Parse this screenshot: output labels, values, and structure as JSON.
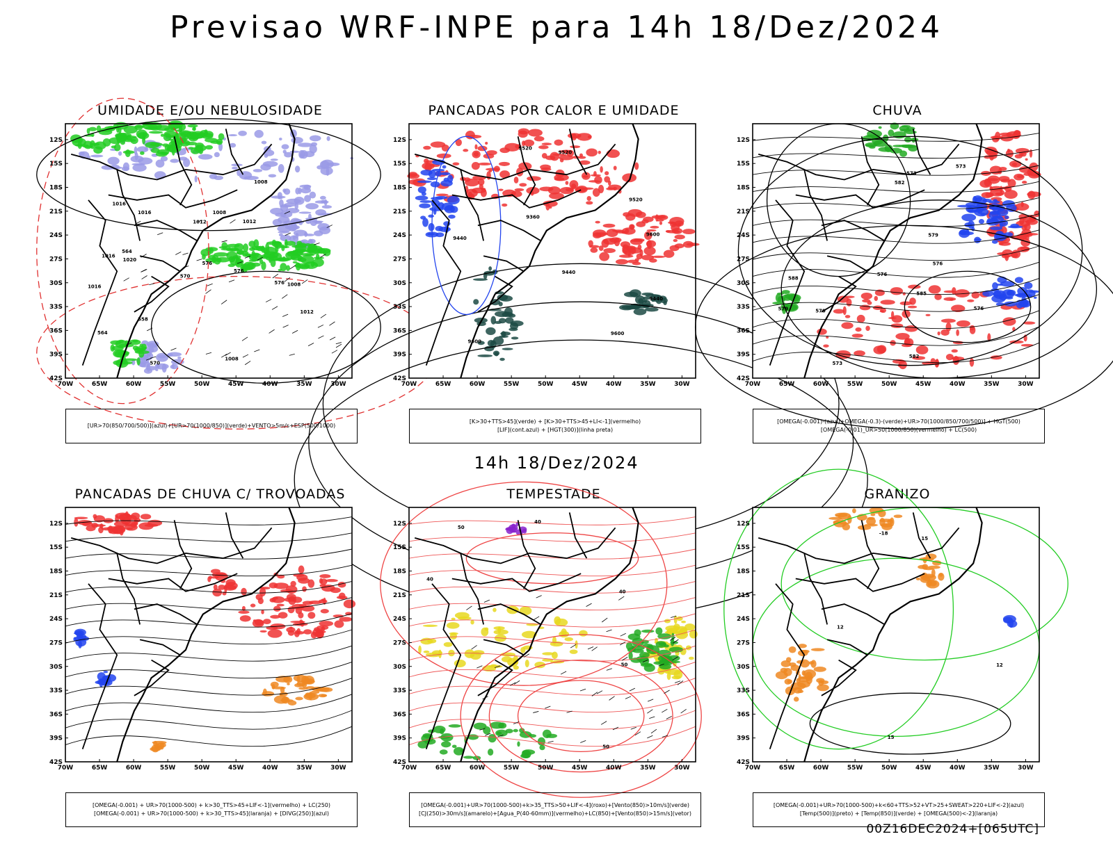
{
  "header": {
    "title": "Previsao WRF-INPE  para 14h 18/Dez/2024",
    "subtitle": "14h 18/Dez/2024",
    "run_stamp": "00Z16DEC2024+[065UTC]"
  },
  "chart_data": [
    {
      "type": "heatmap",
      "title": "UMIDADE E/OU NEBULOSIDADE",
      "legend_lines": [
        "[UR>70(850/700/500)](azul)+[UR>70(1000/850)](verde)+VENTO>5m/s+ESP(500/1000)"
      ],
      "colors": [
        "#9a9ae6",
        "#22cc22",
        "#e03030",
        "#000000"
      ],
      "contour_labels": [
        "1012",
        "1008",
        "1016",
        "1012",
        "1016",
        "1008",
        "1012",
        "1016",
        "1020",
        "1016",
        "1008",
        "1008",
        "576",
        "570",
        "564",
        "558",
        "576",
        "564",
        "576",
        "570"
      ],
      "x_ticks": [
        "70W",
        "65W",
        "60W",
        "55W",
        "50W",
        "45W",
        "40W",
        "35W",
        "30W"
      ],
      "y_ticks": [
        "12S",
        "15S",
        "18S",
        "21S",
        "24S",
        "27S",
        "30S",
        "33S",
        "36S",
        "39S",
        "42S"
      ],
      "xlim": [
        -70,
        -28
      ],
      "ylim": [
        -42,
        -10
      ]
    },
    {
      "type": "heatmap",
      "title": "PANCADAS POR CALOR E UMIDADE",
      "legend_lines": [
        "[K>30+TTS>45](verde) + [K>30+TTS>45+LI<-1](vermelho)",
        "[LIF](cont.azul) + [HGT(300)](linha preta)"
      ],
      "colors": [
        "#ee3333",
        "#1c4a44",
        "#2244ee",
        "#000000"
      ],
      "contour_labels": [
        "9600",
        "9520",
        "9440",
        "9600",
        "9520",
        "9520",
        "9440",
        "9440",
        "9360",
        "9600"
      ],
      "x_ticks": [
        "70W",
        "65W",
        "60W",
        "55W",
        "50W",
        "45W",
        "40W",
        "35W",
        "30W"
      ],
      "y_ticks": [
        "12S",
        "15S",
        "18S",
        "21S",
        "24S",
        "27S",
        "30S",
        "33S",
        "36S",
        "39S",
        "42S"
      ],
      "xlim": [
        -70,
        -28
      ],
      "ylim": [
        -42,
        -10
      ]
    },
    {
      "type": "heatmap",
      "title": "CHUVA",
      "legend_lines": [
        "[OMEGA(-0.001)-(azul)+OMEGA(-0.3)-(verde)+UR>70(1000/850/700/500)] + HGT(500)",
        "[OMEGA(-0.01)_UR>50(1000/850)(vermelho) + LC(500)"
      ],
      "colors": [
        "#ee3333",
        "#22aa22",
        "#2244ee",
        "#000000"
      ],
      "contour_labels": [
        "588",
        "585",
        "582",
        "579",
        "576",
        "573",
        "579",
        "576",
        "573",
        "573",
        "576",
        "582",
        "570"
      ],
      "x_ticks": [
        "70W",
        "65W",
        "60W",
        "55W",
        "50W",
        "45W",
        "40W",
        "35W",
        "30W"
      ],
      "y_ticks": [
        "12S",
        "15S",
        "18S",
        "21S",
        "24S",
        "27S",
        "30S",
        "33S",
        "36S",
        "39S",
        "42S"
      ],
      "xlim": [
        -70,
        -28
      ],
      "ylim": [
        -42,
        -10
      ]
    },
    {
      "type": "heatmap",
      "title": "PANCADAS DE CHUVA C/ TROVOADAS",
      "legend_lines": [
        "[OMEGA(-0.001) + UR>70(1000-500) + k>30_TTS>45+LIF<-1](vermelho) + LC(250)",
        "[OMEGA(-0.001) + UR>70(1000-500) + k>30_TTS>45](laranja) + [DIVG(250)](azul)"
      ],
      "colors": [
        "#ee3333",
        "#ee8822",
        "#2244ee",
        "#000000"
      ],
      "contour_labels": [],
      "x_ticks": [
        "70W",
        "65W",
        "60W",
        "55W",
        "50W",
        "45W",
        "40W",
        "35W",
        "30W"
      ],
      "y_ticks": [
        "12S",
        "15S",
        "18S",
        "21S",
        "24S",
        "27S",
        "30S",
        "33S",
        "36S",
        "39S",
        "42S"
      ],
      "xlim": [
        -70,
        -28
      ],
      "ylim": [
        -42,
        -10
      ]
    },
    {
      "type": "heatmap",
      "title": "TEMPESTADE",
      "legend_lines": [
        "[OMEGA(-0.001)+UR>70(1000-500)+k>35_TTS>50+LIF<-4](roxo)+[Vento(850)>10m/s](verde)",
        "[CJ(250)>30m/s](amarelo)+[Agua_P(40-60mm)](vermelho)+LC(850)+[Vento(850)>15m/s](vetor)"
      ],
      "colors": [
        "#e8d820",
        "#22aa22",
        "#ee4444",
        "#8822cc",
        "#000000"
      ],
      "contour_labels": [
        "40",
        "50",
        "50",
        "40",
        "50",
        "40"
      ],
      "x_ticks": [
        "70W",
        "65W",
        "60W",
        "55W",
        "50W",
        "45W",
        "40W",
        "35W",
        "30W"
      ],
      "y_ticks": [
        "12S",
        "15S",
        "18S",
        "21S",
        "24S",
        "27S",
        "30S",
        "33S",
        "36S",
        "39S",
        "42S"
      ],
      "xlim": [
        -70,
        -28
      ],
      "ylim": [
        -42,
        -10
      ]
    },
    {
      "type": "heatmap",
      "title": "GRANIZO",
      "legend_lines": [
        "[OMEGA(-0.001)+UR>70(1000-500)+k<60+TTS>52+VT>25+SWEAT>220+LIF<-2](azul)",
        "[Temp(500)](preto) + [Temp(850)](verde) + [OMEGA(500)<-2](laranja)"
      ],
      "colors": [
        "#22cc22",
        "#ee8822",
        "#2244ee",
        "#000000"
      ],
      "contour_labels": [
        "12",
        "15",
        "-18",
        "12",
        "15"
      ],
      "x_ticks": [
        "70W",
        "65W",
        "60W",
        "55W",
        "50W",
        "45W",
        "40W",
        "35W",
        "30W"
      ],
      "y_ticks": [
        "12S",
        "15S",
        "18S",
        "21S",
        "24S",
        "27S",
        "30S",
        "33S",
        "36S",
        "39S",
        "42S"
      ],
      "xlim": [
        -70,
        -28
      ],
      "ylim": [
        -42,
        -10
      ]
    }
  ]
}
